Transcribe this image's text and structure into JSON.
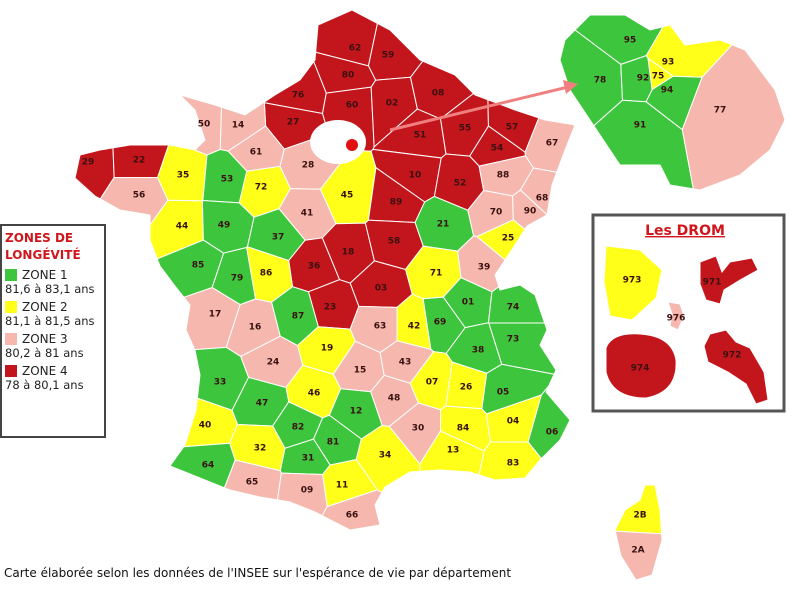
{
  "legend": {
    "title": "ZONES DE LONGÉVITÉ",
    "zones": [
      {
        "name": "ZONE 1",
        "range": "81,6 à 83,1 ans",
        "color": "#3dc63d"
      },
      {
        "name": "ZONE 2",
        "range": "81,1 à 81,5 ans",
        "color": "#ffff1a"
      },
      {
        "name": "ZONE 3",
        "range": "80,2 à 81 ans",
        "color": "#f5b7ae"
      },
      {
        "name": "ZONE 4",
        "range": "78 à 80,1 ans",
        "color": "#c3161c"
      }
    ]
  },
  "map": {
    "departments": [
      {
        "code": "62",
        "zone": "ZONE 4"
      },
      {
        "code": "59",
        "zone": "ZONE 4"
      },
      {
        "code": "80",
        "zone": "ZONE 4"
      },
      {
        "code": "76",
        "zone": "ZONE 4"
      },
      {
        "code": "60",
        "zone": "ZONE 4"
      },
      {
        "code": "02",
        "zone": "ZONE 4"
      },
      {
        "code": "08",
        "zone": "ZONE 4"
      },
      {
        "code": "27",
        "zone": "ZONE 4"
      },
      {
        "code": "51",
        "zone": "ZONE 4"
      },
      {
        "code": "55",
        "zone": "ZONE 4"
      },
      {
        "code": "57",
        "zone": "ZONE 4"
      },
      {
        "code": "54",
        "zone": "ZONE 4"
      },
      {
        "code": "67",
        "zone": "ZONE 3"
      },
      {
        "code": "50",
        "zone": "ZONE 3"
      },
      {
        "code": "14",
        "zone": "ZONE 3"
      },
      {
        "code": "61",
        "zone": "ZONE 3"
      },
      {
        "code": "28",
        "zone": "ZONE 3"
      },
      {
        "code": "29",
        "zone": "ZONE 4"
      },
      {
        "code": "22",
        "zone": "ZONE 4"
      },
      {
        "code": "56",
        "zone": "ZONE 3"
      },
      {
        "code": "35",
        "zone": "ZONE 2"
      },
      {
        "code": "53",
        "zone": "ZONE 1"
      },
      {
        "code": "72",
        "zone": "ZONE 2"
      },
      {
        "code": "45",
        "zone": "ZONE 2"
      },
      {
        "code": "10",
        "zone": "ZONE 4"
      },
      {
        "code": "52",
        "zone": "ZONE 4"
      },
      {
        "code": "88",
        "zone": "ZONE 3"
      },
      {
        "code": "68",
        "zone": "ZONE 3"
      },
      {
        "code": "90",
        "zone": "ZONE 3"
      },
      {
        "code": "70",
        "zone": "ZONE 3"
      },
      {
        "code": "41",
        "zone": "ZONE 3"
      },
      {
        "code": "89",
        "zone": "ZONE 4"
      },
      {
        "code": "21",
        "zone": "ZONE 1"
      },
      {
        "code": "25",
        "zone": "ZONE 2"
      },
      {
        "code": "44",
        "zone": "ZONE 2"
      },
      {
        "code": "49",
        "zone": "ZONE 1"
      },
      {
        "code": "37",
        "zone": "ZONE 1"
      },
      {
        "code": "18",
        "zone": "ZONE 4"
      },
      {
        "code": "58",
        "zone": "ZONE 4"
      },
      {
        "code": "39",
        "zone": "ZONE 3"
      },
      {
        "code": "36",
        "zone": "ZONE 4"
      },
      {
        "code": "71",
        "zone": "ZONE 2"
      },
      {
        "code": "85",
        "zone": "ZONE 1"
      },
      {
        "code": "79",
        "zone": "ZONE 1"
      },
      {
        "code": "86",
        "zone": "ZONE 2"
      },
      {
        "code": "03",
        "zone": "ZONE 4"
      },
      {
        "code": "23",
        "zone": "ZONE 4"
      },
      {
        "code": "17",
        "zone": "ZONE 3"
      },
      {
        "code": "16",
        "zone": "ZONE 3"
      },
      {
        "code": "87",
        "zone": "ZONE 1"
      },
      {
        "code": "63",
        "zone": "ZONE 3"
      },
      {
        "code": "42",
        "zone": "ZONE 2"
      },
      {
        "code": "69",
        "zone": "ZONE 1"
      },
      {
        "code": "01",
        "zone": "ZONE 1"
      },
      {
        "code": "74",
        "zone": "ZONE 1"
      },
      {
        "code": "73",
        "zone": "ZONE 1"
      },
      {
        "code": "38",
        "zone": "ZONE 1"
      },
      {
        "code": "19",
        "zone": "ZONE 2"
      },
      {
        "code": "24",
        "zone": "ZONE 3"
      },
      {
        "code": "15",
        "zone": "ZONE 3"
      },
      {
        "code": "43",
        "zone": "ZONE 3"
      },
      {
        "code": "33",
        "zone": "ZONE 1"
      },
      {
        "code": "46",
        "zone": "ZONE 2"
      },
      {
        "code": "48",
        "zone": "ZONE 3"
      },
      {
        "code": "07",
        "zone": "ZONE 2"
      },
      {
        "code": "26",
        "zone": "ZONE 2"
      },
      {
        "code": "05",
        "zone": "ZONE 1"
      },
      {
        "code": "47",
        "zone": "ZONE 1"
      },
      {
        "code": "12",
        "zone": "ZONE 1"
      },
      {
        "code": "40",
        "zone": "ZONE 2"
      },
      {
        "code": "82",
        "zone": "ZONE 1"
      },
      {
        "code": "81",
        "zone": "ZONE 1"
      },
      {
        "code": "30",
        "zone": "ZONE 3"
      },
      {
        "code": "84",
        "zone": "ZONE 2"
      },
      {
        "code": "04",
        "zone": "ZONE 2"
      },
      {
        "code": "06",
        "zone": "ZONE 1"
      },
      {
        "code": "32",
        "zone": "ZONE 2"
      },
      {
        "code": "31",
        "zone": "ZONE 1"
      },
      {
        "code": "34",
        "zone": "ZONE 2"
      },
      {
        "code": "13",
        "zone": "ZONE 2"
      },
      {
        "code": "83",
        "zone": "ZONE 2"
      },
      {
        "code": "64",
        "zone": "ZONE 1"
      },
      {
        "code": "65",
        "zone": "ZONE 3"
      },
      {
        "code": "09",
        "zone": "ZONE 3"
      },
      {
        "code": "11",
        "zone": "ZONE 2"
      },
      {
        "code": "66",
        "zone": "ZONE 3"
      }
    ]
  },
  "corsica": {
    "departments": [
      {
        "code": "2B",
        "zone": "ZONE 2"
      },
      {
        "code": "2A",
        "zone": "ZONE 3"
      }
    ]
  },
  "paris": {
    "departments": [
      {
        "code": "95",
        "zone": "ZONE 1"
      },
      {
        "code": "78",
        "zone": "ZONE 1"
      },
      {
        "code": "92",
        "zone": "ZONE 1"
      },
      {
        "code": "75",
        "zone": "ZONE 2"
      },
      {
        "code": "93",
        "zone": "ZONE 2"
      },
      {
        "code": "94",
        "zone": "ZONE 1"
      },
      {
        "code": "91",
        "zone": "ZONE 1"
      },
      {
        "code": "77",
        "zone": "ZONE 3"
      }
    ]
  },
  "drom": {
    "title": "Les DROM",
    "departments": [
      {
        "code": "973",
        "zone": "ZONE 2"
      },
      {
        "code": "971",
        "zone": "ZONE 4"
      },
      {
        "code": "976",
        "zone": "ZONE 3"
      },
      {
        "code": "974",
        "zone": "ZONE 4"
      },
      {
        "code": "972",
        "zone": "ZONE 4"
      }
    ]
  },
  "caption": "Carte élaborée selon les données de l'INSEE sur l'espérance de vie par département"
}
